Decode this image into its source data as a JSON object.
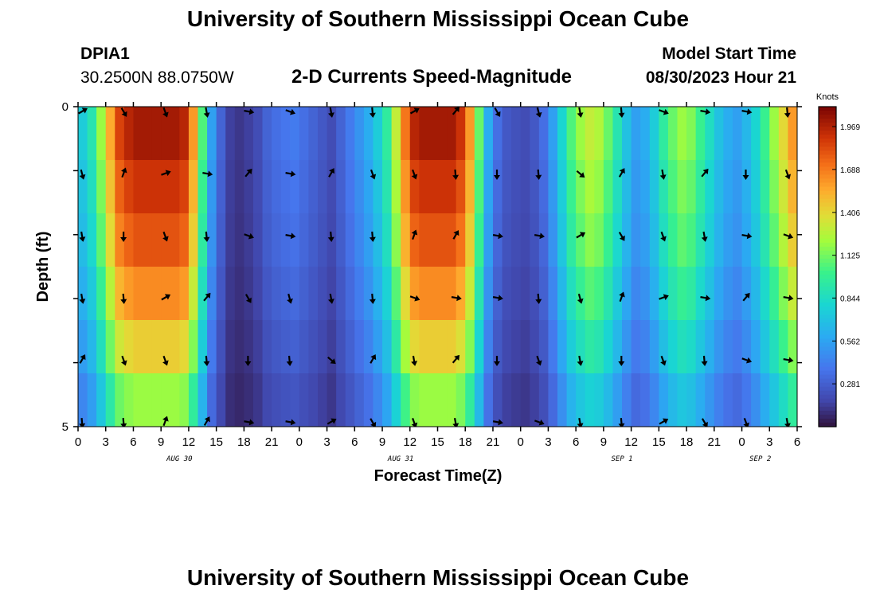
{
  "page": {
    "title": "University of Southern Mississippi Ocean Cube",
    "footer_title": "University of Southern Mississippi Ocean Cube",
    "station_id": "DPIA1",
    "station_coords": "30.2500N  88.0750W",
    "plot_title": "2-D Currents Speed-Magnitude",
    "model_start_label": "Model Start Time",
    "model_start_value": "08/30/2023 Hour 21"
  },
  "chart_data": {
    "type": "heatmap",
    "title": "2-D Currents Speed-Magnitude",
    "xlabel": "Forecast Time(Z)",
    "ylabel": "Depth (ft)",
    "y_range": [
      0,
      5
    ],
    "y_tick_labels": [
      "0",
      "",
      "",
      "",
      "",
      "5"
    ],
    "x_hours_range": [
      0,
      78
    ],
    "x_tick_labels": [
      "0",
      "3",
      "6",
      "9",
      "12",
      "15",
      "18",
      "21",
      "0",
      "3",
      "6",
      "9",
      "12",
      "15",
      "18",
      "21",
      "0",
      "3",
      "6",
      "9",
      "12",
      "15",
      "18",
      "21",
      "0",
      "3",
      "6"
    ],
    "date_labels": [
      {
        "label": "AUG 30",
        "hour": 11
      },
      {
        "label": "AUG 31",
        "hour": 35
      },
      {
        "label": "SEP 1",
        "hour": 59
      },
      {
        "label": "SEP 2",
        "hour": 74
      }
    ],
    "colorbar": {
      "title": "Knots",
      "min": 0,
      "max": 2.1,
      "tick_values": [
        1.969,
        1.688,
        1.406,
        1.125,
        0.844,
        0.562,
        0.281
      ],
      "tick_labels": [
        "1.969",
        "1.688",
        "1.406",
        "1.125",
        "0.844",
        "0.562",
        "0.281"
      ]
    },
    "column_speeds_knots": [
      0.75,
      0.9,
      1.2,
      1.55,
      1.85,
      1.95,
      2.0,
      2.0,
      2.0,
      2.0,
      2.0,
      1.95,
      1.6,
      1.05,
      0.55,
      0.3,
      0.15,
      0.12,
      0.15,
      0.2,
      0.3,
      0.35,
      0.38,
      0.4,
      0.35,
      0.3,
      0.25,
      0.2,
      0.3,
      0.4,
      0.5,
      0.6,
      0.75,
      0.95,
      1.3,
      1.7,
      1.95,
      2.0,
      2.0,
      2.0,
      2.0,
      1.9,
      1.6,
      1.1,
      0.6,
      0.35,
      0.25,
      0.22,
      0.2,
      0.25,
      0.35,
      0.55,
      0.8,
      1.05,
      1.2,
      1.3,
      1.25,
      1.1,
      0.9,
      0.7,
      0.55,
      0.6,
      0.75,
      0.95,
      1.1,
      1.2,
      1.15,
      1.0,
      0.85,
      0.7,
      0.6,
      0.55,
      0.65,
      0.8,
      1.0,
      1.2,
      1.4,
      1.6
    ],
    "depth_factors": [
      1.0,
      0.95,
      0.9,
      0.82,
      0.72,
      0.6
    ],
    "arrow_hours": [
      0,
      4.5,
      9,
      13.5,
      18,
      22.5,
      27,
      31.5,
      36,
      40.5,
      45,
      49.5,
      54,
      58.5,
      63,
      67.5,
      72,
      76.5
    ],
    "arrow_directions_deg": [
      60,
      150,
      160,
      170,
      100,
      110,
      170,
      175,
      60,
      40,
      150,
      165,
      170,
      175,
      110,
      100,
      100,
      175,
      165,
      20,
      70,
      100,
      40,
      100,
      30,
      160,
      160,
      175,
      180,
      175,
      130,
      30,
      170,
      40,
      180,
      160,
      170,
      180,
      160,
      175,
      110,
      100,
      175,
      175,
      20,
      30,
      100,
      100,
      60,
      150,
      160,
      170,
      100,
      110,
      170,
      175,
      60,
      40,
      150,
      165,
      170,
      175,
      110,
      100,
      100,
      175,
      165,
      20,
      70,
      100,
      40,
      100,
      30,
      160,
      160,
      175,
      180,
      175,
      130,
      30,
      170,
      40,
      180,
      160,
      170,
      180,
      160,
      175,
      110,
      100,
      175,
      175,
      20,
      30,
      100,
      100,
      60,
      150,
      160,
      170,
      100,
      110,
      170,
      175
    ]
  }
}
